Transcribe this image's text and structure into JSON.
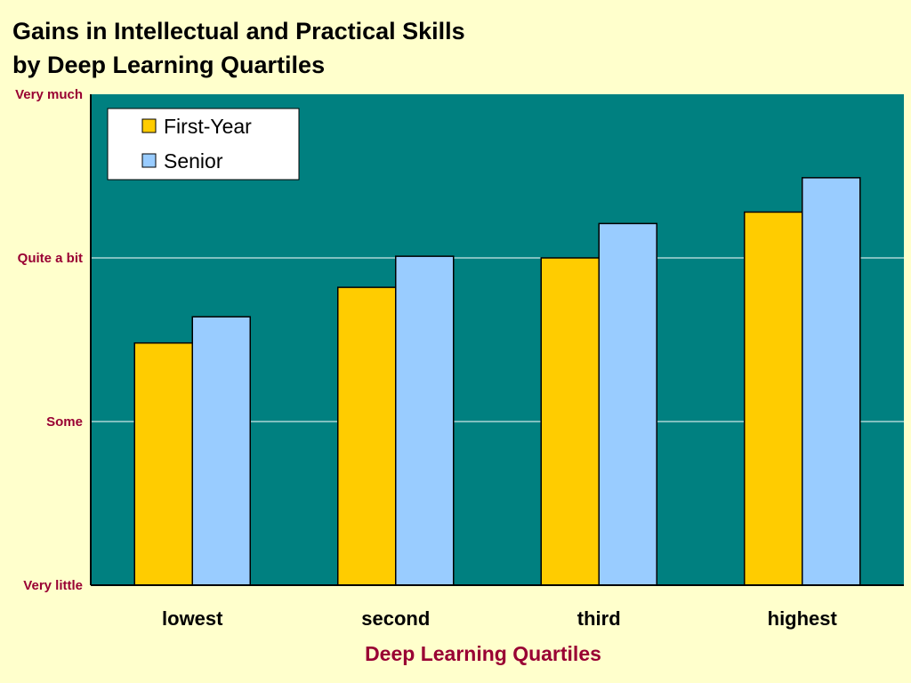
{
  "chart_data": {
    "type": "bar",
    "title": [
      "Gains in Intellectual and Practical Skills",
      "by Deep Learning Quartiles"
    ],
    "xlabel": "Deep Learning Quartiles",
    "ylabel": "",
    "categories": [
      "lowest",
      "second",
      "third",
      "highest"
    ],
    "y_tick_labels": [
      "Very little",
      "Some",
      "Quite a bit",
      "Very much"
    ],
    "ylim": [
      1,
      4
    ],
    "grid": true,
    "legend_position": "top-left",
    "series": [
      {
        "name": "First-Year",
        "color": "#ffcc00",
        "values": [
          2.48,
          2.82,
          3.0,
          3.28
        ]
      },
      {
        "name": "Senior",
        "color": "#99ccff",
        "values": [
          2.64,
          3.01,
          3.21,
          3.49
        ]
      }
    ],
    "plot_background": "#008080",
    "gridline_color": "#ffffff"
  }
}
